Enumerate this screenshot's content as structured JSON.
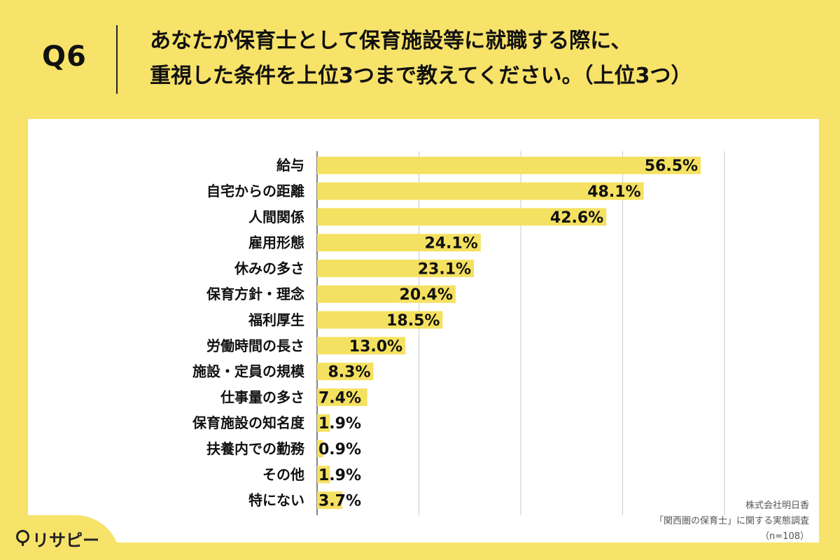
{
  "header": {
    "qnum": "Q6",
    "question_line1": "あなたが保育士として保育施設等に就職する際に、",
    "question_line2": "重視した条件を上位3つまで教えてください。（上位3つ）"
  },
  "source": {
    "line1": "株式会社明日香",
    "line2": "「関西圏の保育士」に関する実態調査",
    "line3": "（n=108）"
  },
  "logo": {
    "text": "リサピー"
  },
  "colors": {
    "bar": "#F5E161",
    "background": "#F7E26A",
    "grid": "#c8c8c8"
  },
  "chart_data": {
    "type": "bar",
    "orientation": "horizontal",
    "categories": [
      "給与",
      "自宅からの距離",
      "人間関係",
      "雇用形態",
      "休みの多さ",
      "保育方針・理念",
      "福利厚生",
      "労働時間の長さ",
      "施設・定員の規模",
      "仕事量の多さ",
      "保育施設の知名度",
      "扶養内での勤務",
      "その他",
      "特にない"
    ],
    "values": [
      56.5,
      48.1,
      42.6,
      24.1,
      23.1,
      20.4,
      18.5,
      13.0,
      8.3,
      7.4,
      1.9,
      0.9,
      1.9,
      3.7
    ],
    "labels": [
      "56.5%",
      "48.1%",
      "42.6%",
      "24.1%",
      "23.1%",
      "20.4%",
      "18.5%",
      "13.0%",
      "8.3%",
      "7.4%",
      "1.9%",
      "0.9%",
      "1.9%",
      "3.7%"
    ],
    "xlim": [
      0,
      60
    ],
    "grid": true
  }
}
